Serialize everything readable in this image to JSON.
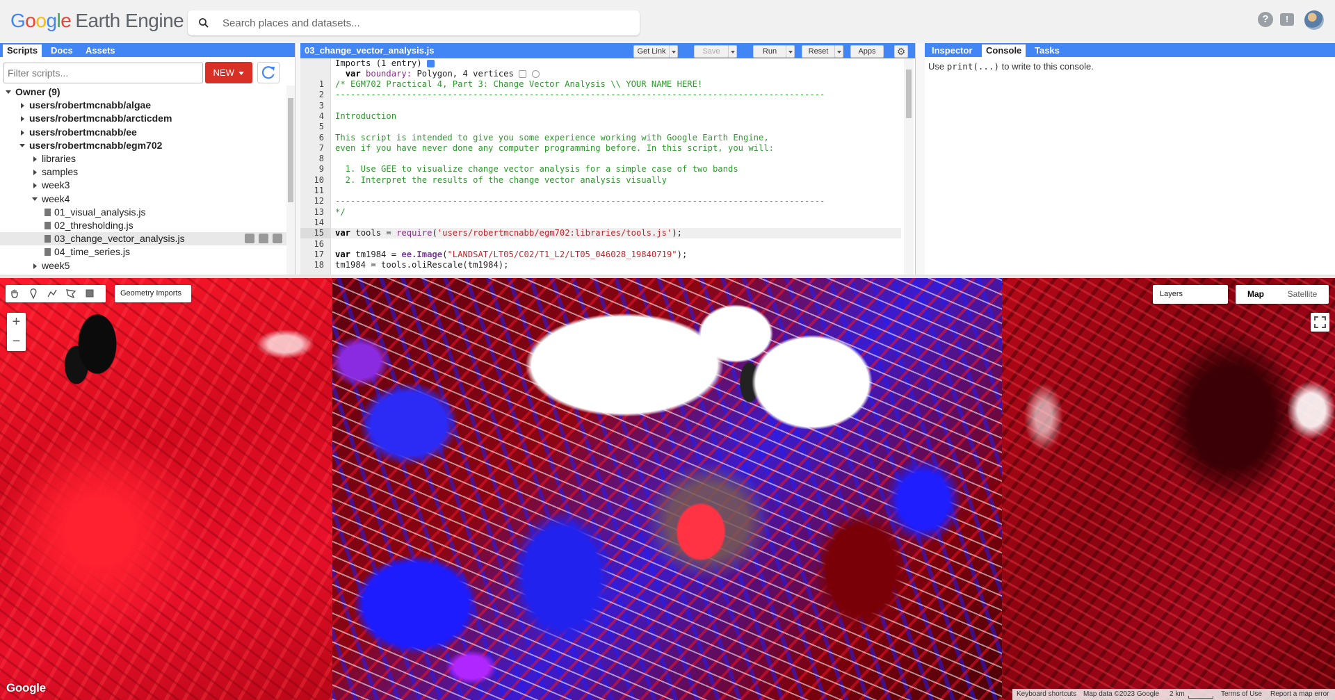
{
  "header": {
    "logo_letters": [
      "G",
      "o",
      "o",
      "g",
      "l",
      "e"
    ],
    "logo_suffix": "Earth Engine",
    "search_placeholder": "Search places and datasets...",
    "help_symbol": "?",
    "feedback_symbol": "!"
  },
  "left_panel": {
    "tabs": [
      "Scripts",
      "Docs",
      "Assets"
    ],
    "active_tab": "Scripts",
    "filter_placeholder": "Filter scripts...",
    "new_button": "NEW",
    "tree": [
      {
        "label": "Owner (9)",
        "bold": true,
        "level": 0,
        "arrow": "down"
      },
      {
        "label": "users/robertmcnabb/algae",
        "bold": true,
        "level": 1,
        "arrow": "right"
      },
      {
        "label": "users/robertmcnabb/arcticdem",
        "bold": true,
        "level": 1,
        "arrow": "right"
      },
      {
        "label": "users/robertmcnabb/ee",
        "bold": true,
        "level": 1,
        "arrow": "right"
      },
      {
        "label": "users/robertmcnabb/egm702",
        "bold": true,
        "level": 1,
        "arrow": "down"
      },
      {
        "label": "libraries",
        "bold": false,
        "level": 2,
        "arrow": "right"
      },
      {
        "label": "samples",
        "bold": false,
        "level": 2,
        "arrow": "right"
      },
      {
        "label": "week3",
        "bold": false,
        "level": 2,
        "arrow": "right"
      },
      {
        "label": "week4",
        "bold": false,
        "level": 2,
        "arrow": "down"
      },
      {
        "label": "01_visual_analysis.js",
        "bold": false,
        "level": 3,
        "arrow": "file"
      },
      {
        "label": "02_thresholding.js",
        "bold": false,
        "level": 3,
        "arrow": "file"
      },
      {
        "label": "03_change_vector_analysis.js",
        "bold": false,
        "level": 3,
        "arrow": "file",
        "selected": true
      },
      {
        "label": "04_time_series.js",
        "bold": false,
        "level": 3,
        "arrow": "file"
      },
      {
        "label": "week5",
        "bold": false,
        "level": 2,
        "arrow": "right"
      }
    ]
  },
  "editor": {
    "file_name": "03_change_vector_analysis.js",
    "buttons": {
      "get_link": "Get Link",
      "save": "Save",
      "run": "Run",
      "reset": "Reset",
      "apps": "Apps"
    },
    "imports_header": "Imports (1 entry)",
    "import_entry": {
      "kw": "var",
      "name": "boundary:",
      "value": "Polygon, 4 vertices"
    },
    "current_line": 15,
    "lines": [
      {
        "n": "1",
        "segments": [
          {
            "c": "cm",
            "t": "/* EGM702 Practical 4, Part 3: Change Vector Analysis \\\\ YOUR NAME HERE!"
          }
        ]
      },
      {
        "n": "2",
        "segments": [
          {
            "c": "cm",
            "t": "------------------------------------------------------------------------------------------------"
          }
        ]
      },
      {
        "n": "3",
        "segments": []
      },
      {
        "n": "4",
        "segments": [
          {
            "c": "cm",
            "t": "Introduction"
          }
        ]
      },
      {
        "n": "5",
        "segments": []
      },
      {
        "n": "6",
        "segments": [
          {
            "c": "cm",
            "t": "This script is intended to give you some experience working with Google Earth Engine,"
          }
        ]
      },
      {
        "n": "7",
        "segments": [
          {
            "c": "cm",
            "t": "even if you have never done any computer programming before. In this script, you will:"
          }
        ]
      },
      {
        "n": "8",
        "segments": []
      },
      {
        "n": "9",
        "segments": [
          {
            "c": "cm",
            "t": "  1. Use GEE to visualize change vector analysis for a simple case of two bands"
          }
        ]
      },
      {
        "n": "10",
        "segments": [
          {
            "c": "cm",
            "t": "  2. Interpret the results of the change vector analysis visually"
          }
        ]
      },
      {
        "n": "11",
        "segments": []
      },
      {
        "n": "12",
        "segments": [
          {
            "c": "cm",
            "t": "------------------------------------------------------------------------------------------------"
          }
        ]
      },
      {
        "n": "13",
        "segments": [
          {
            "c": "cm",
            "t": "*/"
          }
        ]
      },
      {
        "n": "14",
        "segments": []
      },
      {
        "n": "15",
        "segments": [
          {
            "c": "kw",
            "t": "var"
          },
          {
            "c": "",
            "t": " tools = "
          },
          {
            "c": "vn",
            "t": "require"
          },
          {
            "c": "",
            "t": "("
          },
          {
            "c": "str",
            "t": "'users/robertmcnabb/egm702:libraries/tools.js'"
          },
          {
            "c": "",
            "t": ");"
          }
        ]
      },
      {
        "n": "16",
        "segments": []
      },
      {
        "n": "17",
        "segments": [
          {
            "c": "kw",
            "t": "var"
          },
          {
            "c": "",
            "t": " tm1984 = "
          },
          {
            "c": "eefn",
            "t": "ee.Image"
          },
          {
            "c": "",
            "t": "("
          },
          {
            "c": "str",
            "t": "\"LANDSAT/LT05/C02/T1_L2/LT05_046028_19840719\""
          },
          {
            "c": "",
            "t": ");"
          }
        ]
      },
      {
        "n": "18",
        "segments": [
          {
            "c": "",
            "t": "tm1984 = tools.oliRescale(tm1984);"
          }
        ]
      }
    ]
  },
  "right_panel": {
    "tabs": [
      "Inspector",
      "Console",
      "Tasks"
    ],
    "active_tab": "Console",
    "hint_prefix": "Use ",
    "hint_code": "print(...)",
    "hint_suffix": " to write to this console."
  },
  "map": {
    "geometry_imports": "Geometry Imports",
    "zoom_in": "+",
    "zoom_out": "−",
    "layers": "Layers",
    "map_type_options": [
      "Map",
      "Satellite"
    ],
    "map_type_selected": "Map",
    "google_mark": "Google",
    "attribution": {
      "shortcuts": "Keyboard shortcuts",
      "map_data": "Map data ©2023 Google",
      "scale": "2 km",
      "terms": "Terms of Use",
      "report": "Report a map error"
    }
  }
}
